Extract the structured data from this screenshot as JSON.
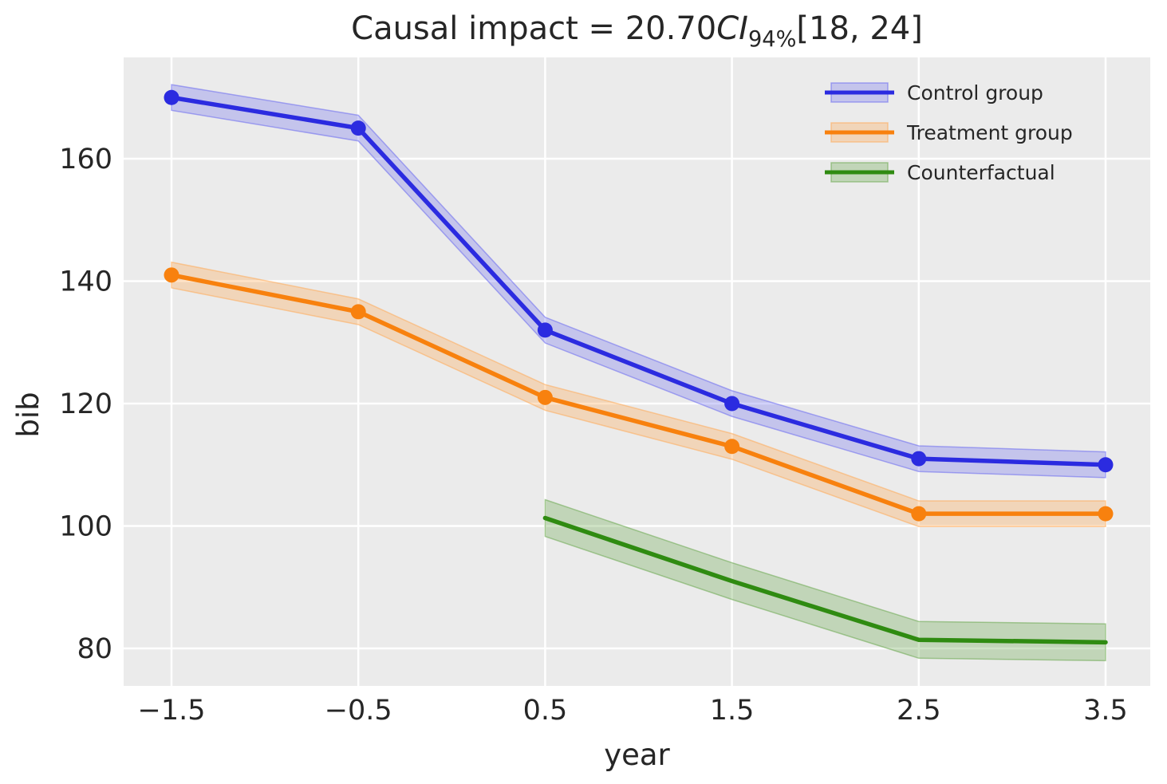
{
  "title": {
    "prefix": "Causal impact = 20.70",
    "ci": "CI",
    "ci_sub": "94%",
    "interval": "[18, 24]"
  },
  "colors": {
    "background": "#ffffff",
    "plot_background": "#ebebeb",
    "grid": "#ffffff",
    "text": "#262626",
    "control": "#2b2be0",
    "treatment": "#f8810e",
    "counterfactual": "#2f8b11"
  },
  "chart_data": {
    "type": "line",
    "title": "Causal impact = 20.70 CI94% [18, 24]",
    "xlabel": "year",
    "ylabel": "bib",
    "grid": true,
    "legend_position": "upper right",
    "x_tick_values": [
      -1.5,
      -0.5,
      0.5,
      1.5,
      2.5,
      3.5
    ],
    "x_ticks": [
      "−1.5",
      "−0.5",
      "0.5",
      "1.5",
      "2.5",
      "3.5"
    ],
    "y_tick_values": [
      160,
      140,
      120,
      100,
      80
    ],
    "y_ticks": [
      "160",
      "140",
      "120",
      "100",
      "80"
    ],
    "xlim": [
      -1.76,
      3.74
    ],
    "ylim": [
      74,
      176.5
    ],
    "series": [
      {
        "name": "Control group",
        "x": [
          -1.5,
          -0.5,
          0.5,
          1.5,
          2.5,
          3.5
        ],
        "y": [
          170,
          165,
          132,
          120,
          111,
          110
        ],
        "ci_halfwidth": 2.1,
        "markers": true,
        "color": "#2b2be0",
        "band_color": "#6a6af0",
        "band_alpha": 0.3
      },
      {
        "name": "Treatment group",
        "x": [
          -1.5,
          -0.5,
          0.5,
          1.5,
          2.5,
          3.5
        ],
        "y": [
          141,
          135,
          121,
          113,
          102,
          102
        ],
        "ci_halfwidth": 2.1,
        "markers": true,
        "color": "#f8810e",
        "band_color": "#ffaa55",
        "band_alpha": 0.33
      },
      {
        "name": "Counterfactual",
        "x": [
          0.5,
          1.5,
          2.5,
          3.5
        ],
        "y": [
          101.3,
          91,
          81.4,
          81
        ],
        "ci_halfwidth": 3,
        "markers": false,
        "color": "#2f8b11",
        "band_color": "#6aa84f",
        "band_alpha": 0.32
      }
    ]
  }
}
